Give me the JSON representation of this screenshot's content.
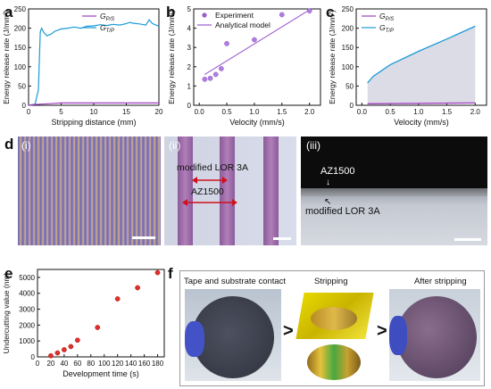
{
  "panels": {
    "a": {
      "label": "a"
    },
    "b": {
      "label": "b"
    },
    "c": {
      "label": "c"
    },
    "d": {
      "label": "d",
      "sub": [
        "(i)",
        "(ii)",
        "(iii)"
      ]
    },
    "e": {
      "label": "e"
    },
    "f": {
      "label": "f"
    }
  },
  "chart_data": [
    {
      "id": "a",
      "type": "line",
      "xlabel": "Stripping distance (mm)",
      "ylabel": "Energy release rate (J/mm²)",
      "xlim": [
        0,
        20
      ],
      "ylim": [
        0,
        250
      ],
      "xticks": [
        0,
        5,
        10,
        15,
        20
      ],
      "yticks": [
        0,
        50,
        100,
        150,
        200,
        250
      ],
      "legend": {
        "placement": "top-right",
        "entries": [
          {
            "text": "G",
            "sub": "P/S",
            "color": "#a040c0"
          },
          {
            "text": "G",
            "sub": "T/P",
            "color": "#1a9ad6"
          }
        ]
      },
      "series": [
        {
          "color": "#1a9ad6",
          "x": [
            0,
            1,
            1.5,
            1.8,
            2,
            2.3,
            2.8,
            3.5,
            4,
            5,
            6,
            7,
            8,
            9,
            10,
            11,
            12,
            13,
            14,
            15,
            15.5,
            16,
            17,
            18,
            18.5,
            19,
            20
          ],
          "y": [
            0,
            3,
            40,
            190,
            200,
            190,
            180,
            185,
            192,
            198,
            200,
            203,
            200,
            205,
            206,
            209,
            207,
            210,
            208,
            212,
            215,
            213,
            211,
            208,
            222,
            212,
            205
          ]
        },
        {
          "color": "#a040c0",
          "x": [
            0,
            1,
            2,
            3,
            4,
            5,
            10,
            15,
            20
          ],
          "y": [
            0,
            2,
            3,
            4,
            5,
            6,
            6,
            6,
            6
          ]
        }
      ]
    },
    {
      "id": "b",
      "type": "scatter",
      "xlabel": "Velocity (mm/s)",
      "ylabel": "Energy release rate (J/mm²)",
      "xlim": [
        -0.1,
        2.2
      ],
      "ylim": [
        0,
        5
      ],
      "xticks": [
        0.0,
        0.5,
        1.0,
        1.5,
        2.0
      ],
      "yticks": [
        0,
        1,
        2,
        3,
        4,
        5
      ],
      "legend": {
        "placement": "top-left",
        "entries": [
          {
            "text": "Experiment",
            "color": "#9b59d0"
          },
          {
            "text": "Analytical model",
            "color": "#9b59d0"
          }
        ]
      },
      "points": {
        "x": [
          0.1,
          0.2,
          0.3,
          0.4,
          0.5,
          1.0,
          1.5,
          2.0
        ],
        "y": [
          1.35,
          1.4,
          1.6,
          1.9,
          3.2,
          3.4,
          4.7,
          4.9
        ]
      },
      "fit": {
        "x": [
          0.1,
          2.0
        ],
        "y": [
          1.6,
          4.95
        ]
      }
    },
    {
      "id": "c",
      "type": "area",
      "xlabel": "Velocity (mm/s)",
      "ylabel": "Energy release rate (J/mm²)",
      "xlim": [
        -0.1,
        2.2
      ],
      "ylim": [
        0,
        250
      ],
      "xticks": [
        0.0,
        0.5,
        1.0,
        1.5,
        2.0
      ],
      "yticks": [
        0,
        50,
        100,
        150,
        200,
        250
      ],
      "legend": {
        "placement": "top-left",
        "entries": [
          {
            "text": "G",
            "sub": "P/S",
            "color": "#a040c0"
          },
          {
            "text": "G",
            "sub": "T/P",
            "color": "#1a9ad6"
          }
        ]
      },
      "series": [
        {
          "color": "#1a9ad6",
          "x": [
            0.1,
            0.2,
            0.5,
            1.0,
            1.5,
            2.0
          ],
          "y": [
            58,
            75,
            105,
            140,
            172,
            205
          ]
        },
        {
          "color": "#a040c0",
          "x": [
            0.1,
            2.0
          ],
          "y": [
            4,
            6
          ]
        }
      ]
    },
    {
      "id": "e",
      "type": "scatter",
      "xlabel": "Development time (s)",
      "ylabel": "Undercutting value (nm)",
      "xlim": [
        0,
        190
      ],
      "ylim": [
        0,
        5500
      ],
      "xticks": [
        0,
        20,
        40,
        60,
        80,
        100,
        120,
        140,
        160,
        180
      ],
      "yticks": [
        0,
        1000,
        2000,
        3000,
        4000,
        5000
      ],
      "points": {
        "x": [
          20,
          30,
          40,
          50,
          60,
          90,
          120,
          150,
          180
        ],
        "y": [
          70,
          250,
          450,
          650,
          1050,
          1850,
          3650,
          4350,
          5300
        ]
      }
    }
  ],
  "images": {
    "d2_labels": {
      "top": "modified LOR 3A",
      "bottom": "AZ1500"
    },
    "d3_labels": {
      "top": "AZ1500",
      "bottom": "modified LOR 3A"
    },
    "f_titles": [
      "Tape and substrate contact",
      "Stripping",
      "After stripping"
    ]
  }
}
